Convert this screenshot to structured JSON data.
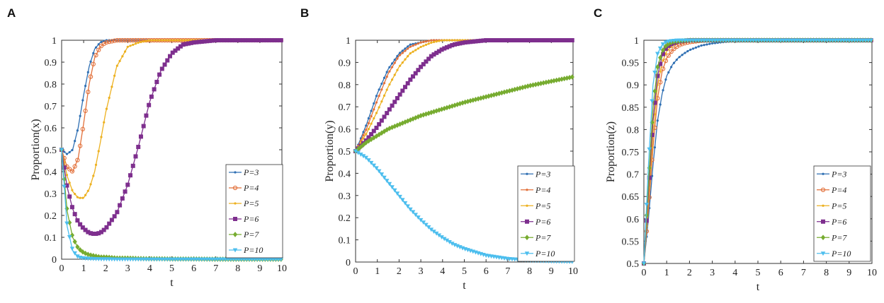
{
  "chart_data": [
    {
      "panel": "A",
      "type": "line",
      "xlabel": "t",
      "ylabel": "Proportion(x)",
      "xlim": [
        0,
        10
      ],
      "ylim": [
        0,
        1
      ],
      "xticks": [
        "0",
        "1",
        "2",
        "3",
        "4",
        "5",
        "6",
        "7",
        "8",
        "9",
        "10"
      ],
      "yticks": [
        "0",
        "0.1",
        "0.2",
        "0.3",
        "0.4",
        "0.5",
        "0.6",
        "0.7",
        "0.8",
        "0.9",
        "1"
      ],
      "grid": false,
      "legend_position": "right-bottom",
      "x": [
        0,
        0.25,
        0.5,
        0.75,
        1,
        1.25,
        1.5,
        1.75,
        2,
        2.5,
        3,
        3.5,
        4,
        4.5,
        5,
        5.5,
        6,
        7,
        8,
        9,
        10
      ],
      "series": [
        {
          "name": "P=3",
          "color": "#2f6fb3",
          "marker": "dot",
          "values": [
            0.5,
            0.48,
            0.5,
            0.6,
            0.75,
            0.88,
            0.96,
            0.99,
            1.0,
            1.0,
            1.0,
            1.0,
            1.0,
            1.0,
            1.0,
            1.0,
            1.0,
            1.0,
            1.0,
            1.0,
            1.0
          ]
        },
        {
          "name": "P=4",
          "color": "#e2703a",
          "marker": "circle",
          "values": [
            0.5,
            0.42,
            0.4,
            0.46,
            0.62,
            0.8,
            0.92,
            0.97,
            0.99,
            1.0,
            1.0,
            1.0,
            1.0,
            1.0,
            1.0,
            1.0,
            1.0,
            1.0,
            1.0,
            1.0,
            1.0
          ]
        },
        {
          "name": "P=5",
          "color": "#edb120",
          "marker": "dot",
          "values": [
            0.5,
            0.38,
            0.31,
            0.28,
            0.28,
            0.32,
            0.4,
            0.53,
            0.67,
            0.88,
            0.97,
            0.99,
            1.0,
            1.0,
            1.0,
            1.0,
            1.0,
            1.0,
            1.0,
            1.0,
            1.0
          ]
        },
        {
          "name": "P=6",
          "color": "#7e2f8e",
          "marker": "square",
          "values": [
            0.5,
            0.33,
            0.23,
            0.17,
            0.14,
            0.12,
            0.115,
            0.12,
            0.14,
            0.21,
            0.34,
            0.52,
            0.72,
            0.86,
            0.94,
            0.98,
            0.99,
            1.0,
            1.0,
            1.0,
            1.0
          ]
        },
        {
          "name": "P=7",
          "color": "#77ac30",
          "marker": "diamond",
          "values": [
            0.5,
            0.22,
            0.1,
            0.05,
            0.03,
            0.02,
            0.015,
            0.01,
            0.01,
            0.005,
            0.005,
            0.003,
            0.002,
            0.002,
            0.001,
            0.001,
            0.001,
            0.0,
            0.0,
            0.0,
            0.0
          ]
        },
        {
          "name": "P=10",
          "color": "#4dbeee",
          "marker": "triangle",
          "values": [
            0.5,
            0.15,
            0.04,
            0.01,
            0.005,
            0.003,
            0.002,
            0.001,
            0.001,
            0.0,
            0.0,
            0.0,
            0.0,
            0.0,
            0.0,
            0.0,
            0.0,
            0.0,
            0.0,
            0.0,
            0.0
          ]
        }
      ]
    },
    {
      "panel": "B",
      "type": "line",
      "xlabel": "t",
      "ylabel": "Proportion(y)",
      "xlim": [
        0,
        10
      ],
      "ylim": [
        0,
        1
      ],
      "xticks": [
        "0",
        "1",
        "2",
        "3",
        "4",
        "5",
        "6",
        "7",
        "8",
        "9",
        "10"
      ],
      "yticks": [
        "0",
        "0.1",
        "0.2",
        "0.3",
        "0.4",
        "0.5",
        "0.6",
        "0.7",
        "0.8",
        "0.9",
        "1"
      ],
      "grid": false,
      "legend_position": "right-bottom",
      "x": [
        0,
        0.5,
        1,
        1.5,
        2,
        2.5,
        3,
        3.5,
        4,
        4.5,
        5,
        6,
        7,
        8,
        9,
        10
      ],
      "series": [
        {
          "name": "P=3",
          "color": "#2f6fb3",
          "marker": "dot",
          "values": [
            0.5,
            0.62,
            0.76,
            0.87,
            0.94,
            0.98,
            0.99,
            1.0,
            1.0,
            1.0,
            1.0,
            1.0,
            1.0,
            1.0,
            1.0,
            1.0
          ]
        },
        {
          "name": "P=4",
          "color": "#e2703a",
          "marker": "dot",
          "values": [
            0.5,
            0.6,
            0.73,
            0.85,
            0.93,
            0.97,
            0.99,
            1.0,
            1.0,
            1.0,
            1.0,
            1.0,
            1.0,
            1.0,
            1.0,
            1.0
          ]
        },
        {
          "name": "P=5",
          "color": "#edb120",
          "marker": "dot",
          "values": [
            0.5,
            0.58,
            0.68,
            0.79,
            0.88,
            0.94,
            0.97,
            0.99,
            1.0,
            1.0,
            1.0,
            1.0,
            1.0,
            1.0,
            1.0,
            1.0
          ]
        },
        {
          "name": "P=6",
          "color": "#7e2f8e",
          "marker": "square",
          "values": [
            0.5,
            0.55,
            0.61,
            0.68,
            0.75,
            0.82,
            0.88,
            0.93,
            0.96,
            0.98,
            0.99,
            1.0,
            1.0,
            1.0,
            1.0,
            1.0
          ]
        },
        {
          "name": "P=7",
          "color": "#77ac30",
          "marker": "diamond",
          "values": [
            0.5,
            0.54,
            0.57,
            0.6,
            0.62,
            0.64,
            0.66,
            0.675,
            0.69,
            0.705,
            0.72,
            0.745,
            0.77,
            0.795,
            0.815,
            0.835
          ]
        },
        {
          "name": "P=10",
          "color": "#4dbeee",
          "marker": "triangle",
          "values": [
            0.5,
            0.47,
            0.42,
            0.36,
            0.3,
            0.24,
            0.19,
            0.145,
            0.11,
            0.08,
            0.06,
            0.03,
            0.015,
            0.008,
            0.004,
            0.002
          ]
        }
      ]
    },
    {
      "panel": "C",
      "type": "line",
      "xlabel": "t",
      "ylabel": "Proportion(z)",
      "xlim": [
        0,
        10
      ],
      "ylim": [
        0.5,
        1
      ],
      "xticks": [
        "0",
        "1",
        "2",
        "3",
        "4",
        "5",
        "6",
        "7",
        "8",
        "9",
        "10"
      ],
      "yticks": [
        "0.5",
        "0.55",
        "0.6",
        "0.65",
        "0.7",
        "0.75",
        "0.8",
        "0.85",
        "0.9",
        "0.95",
        "1"
      ],
      "grid": false,
      "legend_position": "right-bottom",
      "x": [
        0,
        0.2,
        0.4,
        0.6,
        0.8,
        1,
        1.25,
        1.5,
        1.75,
        2,
        2.5,
        3,
        3.5,
        4,
        5,
        6,
        7,
        8,
        9,
        10
      ],
      "series": [
        {
          "name": "P=3",
          "color": "#2f6fb3",
          "marker": "dot",
          "values": [
            0.5,
            0.6,
            0.72,
            0.82,
            0.88,
            0.92,
            0.945,
            0.96,
            0.97,
            0.978,
            0.988,
            0.993,
            0.996,
            0.998,
            0.999,
            1.0,
            1.0,
            1.0,
            1.0,
            1.0
          ]
        },
        {
          "name": "P=4",
          "color": "#e2703a",
          "marker": "circle",
          "values": [
            0.5,
            0.62,
            0.76,
            0.87,
            0.93,
            0.96,
            0.978,
            0.988,
            0.993,
            0.996,
            0.999,
            1.0,
            1.0,
            1.0,
            1.0,
            1.0,
            1.0,
            1.0,
            1.0,
            1.0
          ]
        },
        {
          "name": "P=5",
          "color": "#edb120",
          "marker": "dot",
          "values": [
            0.5,
            0.64,
            0.79,
            0.9,
            0.95,
            0.975,
            0.988,
            0.994,
            0.997,
            0.999,
            1.0,
            1.0,
            1.0,
            1.0,
            1.0,
            1.0,
            1.0,
            1.0,
            1.0,
            1.0
          ]
        },
        {
          "name": "P=6",
          "color": "#7e2f8e",
          "marker": "square",
          "values": [
            0.5,
            0.66,
            0.82,
            0.92,
            0.965,
            0.985,
            0.993,
            0.997,
            0.999,
            1.0,
            1.0,
            1.0,
            1.0,
            1.0,
            1.0,
            1.0,
            1.0,
            1.0,
            1.0,
            1.0
          ]
        },
        {
          "name": "P=7",
          "color": "#77ac30",
          "marker": "diamond",
          "values": [
            0.5,
            0.68,
            0.85,
            0.94,
            0.975,
            0.99,
            0.996,
            0.998,
            0.999,
            1.0,
            1.0,
            1.0,
            1.0,
            1.0,
            1.0,
            1.0,
            1.0,
            1.0,
            1.0,
            1.0
          ]
        },
        {
          "name": "P=10",
          "color": "#4dbeee",
          "marker": "triangle",
          "values": [
            0.5,
            0.72,
            0.9,
            0.97,
            0.99,
            0.997,
            0.999,
            1.0,
            1.0,
            1.0,
            1.0,
            1.0,
            1.0,
            1.0,
            1.0,
            1.0,
            1.0,
            1.0,
            1.0,
            1.0
          ]
        }
      ]
    }
  ]
}
